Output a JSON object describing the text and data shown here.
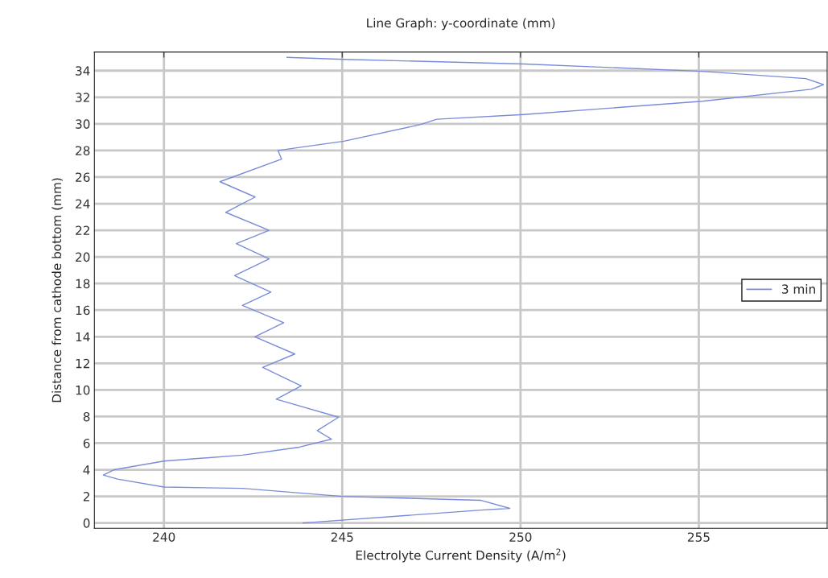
{
  "chart_data": {
    "type": "line",
    "title": "Line Graph: y-coordinate (mm)",
    "xlabel": "Electrolyte Current Density (A/m$^{2}$)",
    "ylabel": "Distance from cathode bottom (mm)",
    "x": [
      243.9,
      248.9,
      249.7,
      248.9,
      245.0,
      242.2,
      240.0,
      238.7,
      238.3,
      238.6,
      240.0,
      242.2,
      243.8,
      244.7,
      244.3,
      244.9,
      243.15,
      243.85,
      242.77,
      243.67,
      242.55,
      243.36,
      242.2,
      243.0,
      241.98,
      242.95,
      242.03,
      242.95,
      241.73,
      242.56,
      241.57,
      243.3,
      243.2,
      245.05,
      247.2,
      247.65,
      250.1,
      255.1,
      258.15,
      258.5,
      258.0,
      255.1,
      250.1,
      245.05,
      243.45
    ],
    "series": [
      {
        "name": "3 min",
        "color": "#7a8cd9",
        "values": [
          0,
          0.97,
          1.1,
          1.7,
          2.0,
          2.6,
          2.7,
          3.3,
          3.6,
          4.0,
          4.65,
          5.1,
          5.7,
          6.3,
          6.95,
          7.95,
          9.3,
          10.3,
          11.7,
          12.7,
          14.0,
          15.05,
          16.35,
          17.35,
          18.6,
          19.85,
          21.0,
          22.0,
          23.35,
          24.5,
          25.65,
          27.35,
          28.0,
          28.7,
          29.95,
          30.35,
          30.7,
          31.7,
          32.6,
          32.95,
          33.4,
          33.95,
          34.5,
          34.85,
          35.0
        ]
      }
    ],
    "xlim": [
      238.05,
      258.6
    ],
    "ylim": [
      -0.4,
      35.4
    ],
    "xticks": [
      240,
      245,
      250,
      255
    ],
    "yticks": [
      0,
      2,
      4,
      6,
      8,
      10,
      12,
      14,
      16,
      18,
      20,
      22,
      24,
      26,
      28,
      30,
      32,
      34
    ],
    "grid": true,
    "legend": "center right",
    "marker": "none",
    "line_style": "solid"
  }
}
